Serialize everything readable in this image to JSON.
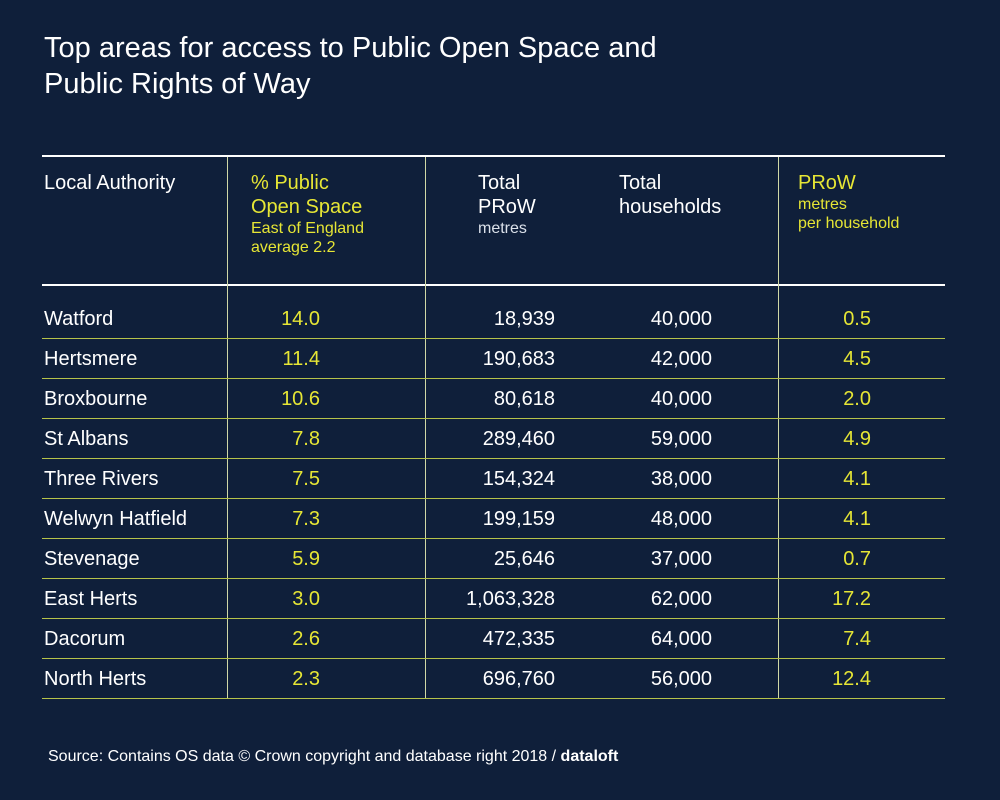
{
  "chart_data": {
    "type": "table",
    "title_lines": [
      "Top areas for access to Public Open Space and",
      "Public Rights of Way"
    ],
    "headers": {
      "authority": "Local Authority",
      "pos_main_1": "% Public",
      "pos_main_2": "Open Space",
      "pos_sub_1": "East of England",
      "pos_sub_2": "average 2.2",
      "prow_main_1": "Total",
      "prow_main_2": "PRoW",
      "prow_sub": "metres",
      "hh_main_1": "Total",
      "hh_main_2": "households",
      "per_main": "PRoW",
      "per_sub_1": "metres",
      "per_sub_2": "per household"
    },
    "rows": [
      {
        "authority": "Watford",
        "pos": "14.0",
        "prow": "18,939",
        "households": "40,000",
        "per": "0.5"
      },
      {
        "authority": "Hertsmere",
        "pos": "11.4",
        "prow": "190,683",
        "households": "42,000",
        "per": "4.5"
      },
      {
        "authority": "Broxbourne",
        "pos": "10.6",
        "prow": "80,618",
        "households": "40,000",
        "per": "2.0"
      },
      {
        "authority": "St Albans",
        "pos": "7.8",
        "prow": "289,460",
        "households": "59,000",
        "per": "4.9"
      },
      {
        "authority": "Three Rivers",
        "pos": "7.5",
        "prow": "154,324",
        "households": "38,000",
        "per": "4.1"
      },
      {
        "authority": "Welwyn Hatfield",
        "pos": "7.3",
        "prow": "199,159",
        "households": "48,000",
        "per": "4.1"
      },
      {
        "authority": "Stevenage",
        "pos": "5.9",
        "prow": "25,646",
        "households": "37,000",
        "per": "0.7"
      },
      {
        "authority": "East Herts",
        "pos": "3.0",
        "prow": "1,063,328",
        "households": "62,000",
        "per": "17.2"
      },
      {
        "authority": "Dacorum",
        "pos": "2.6",
        "prow": "472,335",
        "households": "64,000",
        "per": "7.4"
      },
      {
        "authority": "North Herts",
        "pos": "2.3",
        "prow": "696,760",
        "households": "56,000",
        "per": "12.4"
      }
    ],
    "source": "Source: Contains OS data © Crown copyright and database right 2018 /",
    "brand": "dataloft",
    "colors": {
      "background": "#0f1f3a",
      "accent": "#e6e635",
      "text": "#ffffff"
    }
  }
}
